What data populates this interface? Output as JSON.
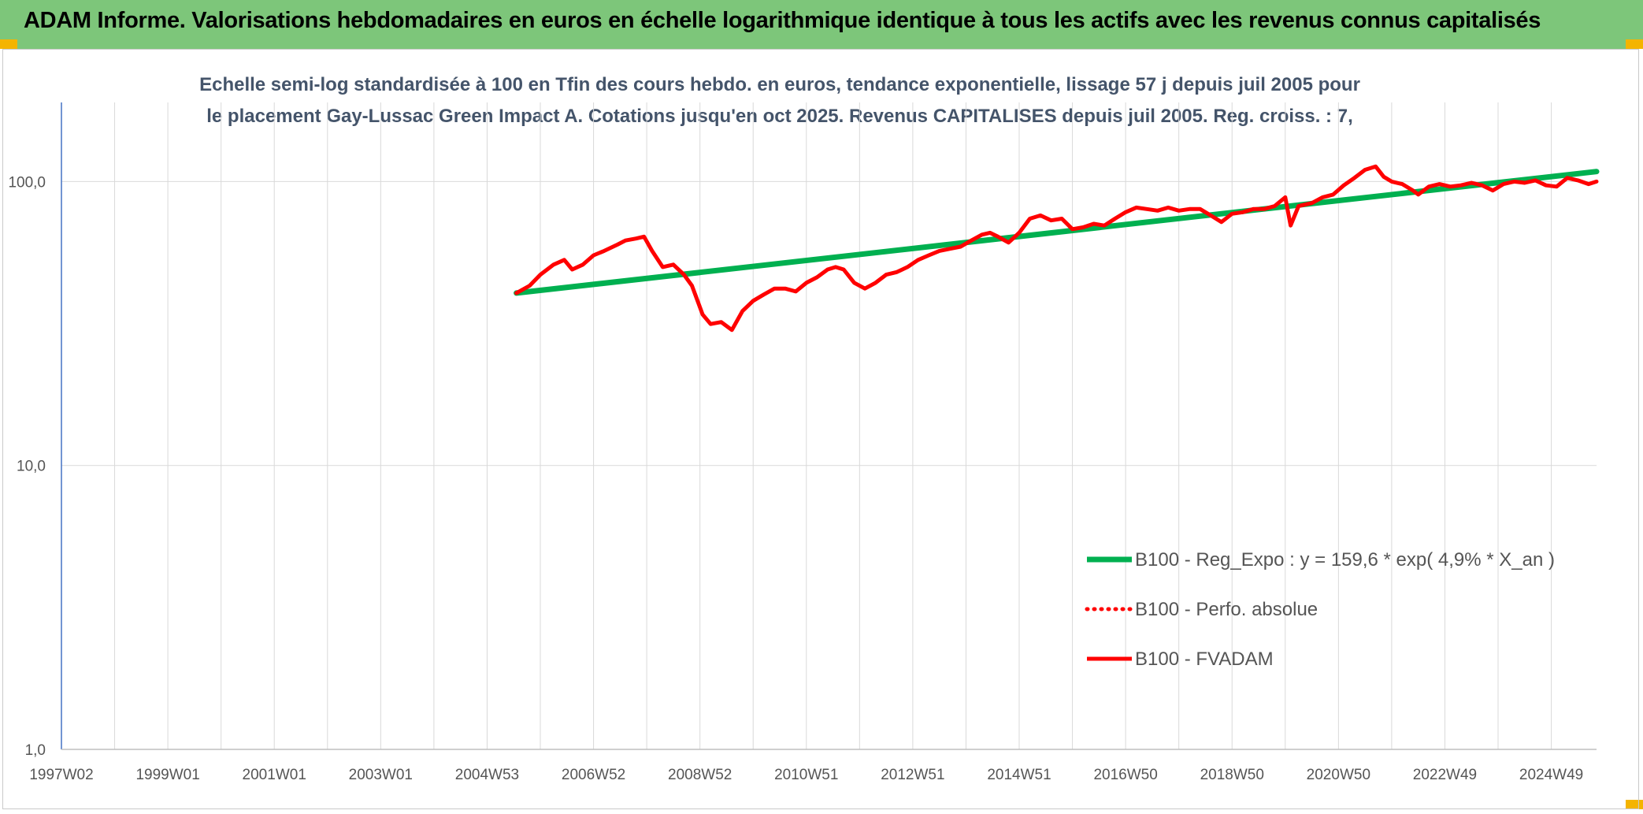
{
  "header": {
    "title": "ADAM Informe. Valorisations hebdomadaires en euros en échelle logarithmique identique à tous les actifs avec les revenus connus capitalisés"
  },
  "chart_data": {
    "type": "line",
    "title": "Echelle semi-log standardisée à 100 en Tfin des cours hebdo. en euros, tendance exponentielle, lissage 57 j depuis juil 2005 pour le placement Gay-Lussac Green Impact A. Cotations jusqu'en oct 2025. Revenus CAPITALISES depuis juil 2005. Reg. croiss. : 7,",
    "y_scale": "log",
    "ylim": [
      1,
      190
    ],
    "y_ticks": [
      "1,0",
      "10,0",
      "100,0"
    ],
    "y_tick_values": [
      1,
      10,
      100
    ],
    "xlim": [
      1997.0,
      2025.85
    ],
    "x_ticks": [
      "1997W02",
      "1999W01",
      "2001W01",
      "2003W01",
      "2004W53",
      "2006W52",
      "2008W52",
      "2010W51",
      "2012W51",
      "2014W51",
      "2016W50",
      "2018W50",
      "2020W50",
      "2022W49",
      "2024W49"
    ],
    "x_tick_values": [
      1997.0,
      1999.0,
      2001.0,
      2003.0,
      2005.0,
      2007.0,
      2009.0,
      2011.0,
      2013.0,
      2015.0,
      2017.0,
      2019.0,
      2021.0,
      2023.0,
      2025.0
    ],
    "grid": "vertical-per-year-and-horizontal-per-decade",
    "legend_position": "right",
    "series": [
      {
        "name": "B100 - Reg_Expo : y = 159,6 * exp( 4,9% *  X_an )",
        "color": "#00b050",
        "style": "solid",
        "x": [
          2005.55,
          2025.85
        ],
        "y": [
          40.5,
          108.5
        ]
      },
      {
        "name": "B100 - Perfo. absolue",
        "color": "#ff0000",
        "style": "dotted",
        "x": [],
        "y": []
      },
      {
        "name": "B100 - FVADAM",
        "color": "#ff0000",
        "style": "solid",
        "x": [
          2005.55,
          2005.8,
          2006.0,
          2006.25,
          2006.45,
          2006.6,
          2006.8,
          2007.0,
          2007.2,
          2007.45,
          2007.6,
          2007.8,
          2007.95,
          2008.1,
          2008.3,
          2008.5,
          2008.7,
          2008.85,
          2009.05,
          2009.2,
          2009.4,
          2009.6,
          2009.8,
          2010.0,
          2010.2,
          2010.4,
          2010.6,
          2010.8,
          2011.0,
          2011.2,
          2011.4,
          2011.55,
          2011.7,
          2011.9,
          2012.1,
          2012.3,
          2012.5,
          2012.7,
          2012.9,
          2013.1,
          2013.3,
          2013.5,
          2013.7,
          2013.9,
          2014.1,
          2014.3,
          2014.45,
          2014.6,
          2014.8,
          2015.0,
          2015.2,
          2015.4,
          2015.6,
          2015.8,
          2016.0,
          2016.2,
          2016.4,
          2016.6,
          2016.8,
          2017.0,
          2017.2,
          2017.4,
          2017.6,
          2017.8,
          2018.0,
          2018.2,
          2018.4,
          2018.6,
          2018.8,
          2019.0,
          2019.2,
          2019.4,
          2019.6,
          2019.8,
          2020.0,
          2020.1,
          2020.25,
          2020.5,
          2020.7,
          2020.9,
          2021.1,
          2021.3,
          2021.5,
          2021.7,
          2021.85,
          2022.0,
          2022.2,
          2022.4,
          2022.5,
          2022.7,
          2022.9,
          2023.1,
          2023.3,
          2023.5,
          2023.7,
          2023.9,
          2024.1,
          2024.3,
          2024.5,
          2024.7,
          2024.9,
          2025.1,
          2025.3,
          2025.5,
          2025.7,
          2025.85
        ],
        "y": [
          40.5,
          43,
          47,
          51,
          53,
          49,
          51,
          55,
          57,
          60,
          62,
          63,
          64,
          57,
          50,
          51,
          47,
          43,
          34,
          31.5,
          32,
          30,
          35,
          38,
          40,
          42,
          42,
          41,
          44,
          46,
          49,
          50,
          49,
          44,
          42,
          44,
          47,
          48,
          50,
          53,
          55,
          57,
          58,
          59,
          62,
          65,
          66,
          64,
          61,
          66,
          74,
          76,
          73,
          74,
          68,
          69,
          71,
          70,
          74,
          78,
          81,
          80,
          79,
          81,
          79,
          80,
          80,
          76,
          72,
          77,
          78,
          80,
          80,
          82,
          88,
          70,
          82,
          84,
          88,
          90,
          97,
          103,
          110,
          113,
          104,
          100,
          98,
          93,
          90,
          96,
          98,
          96,
          97,
          99,
          97,
          93,
          98,
          100,
          99,
          101,
          97,
          96,
          103,
          101,
          98,
          100
        ]
      }
    ]
  }
}
